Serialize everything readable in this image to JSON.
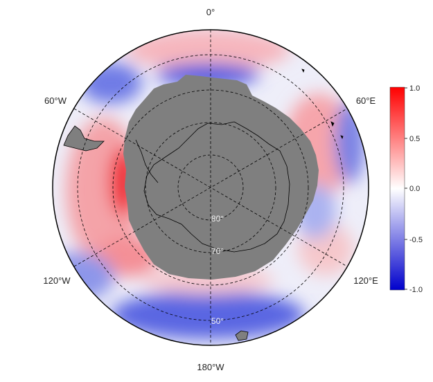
{
  "map": {
    "projection": "south-polar stereographic",
    "longitude_labels": {
      "top": "0°",
      "upper_right": "60°E",
      "lower_right": "120°E",
      "bottom": "180°W",
      "lower_left": "120°W",
      "upper_left": "60°W"
    },
    "latitude_labels": [
      "80°",
      "70°",
      "50°"
    ],
    "land_color": "#7f7f7f",
    "circle_color": "#000000"
  },
  "colorbar": {
    "ticks": [
      "1.0",
      "0.5",
      "0.0",
      "-0.5",
      "-1.0"
    ],
    "max_color": "#ff0000",
    "mid_color": "#ffffff",
    "min_color": "#0000cc",
    "range": [
      -1.0,
      1.0
    ]
  }
}
